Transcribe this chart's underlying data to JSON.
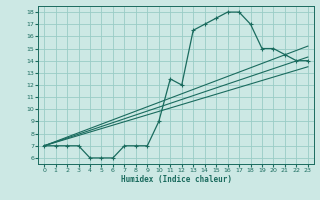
{
  "xlabel": "Humidex (Indice chaleur)",
  "background_color": "#cce8e4",
  "grid_color": "#99ccc6",
  "line_color": "#1a6b5e",
  "xlim": [
    -0.5,
    23.5
  ],
  "ylim": [
    5.5,
    18.5
  ],
  "xticks": [
    0,
    1,
    2,
    3,
    4,
    5,
    6,
    7,
    8,
    9,
    10,
    11,
    12,
    13,
    14,
    15,
    16,
    17,
    18,
    19,
    20,
    21,
    22,
    23
  ],
  "yticks": [
    6,
    7,
    8,
    9,
    10,
    11,
    12,
    13,
    14,
    15,
    16,
    17,
    18
  ],
  "curve_x": [
    0,
    1,
    2,
    3,
    4,
    5,
    6,
    7,
    8,
    9,
    10,
    11,
    12,
    13,
    14,
    15,
    16,
    17,
    18,
    19,
    20,
    21,
    22,
    23
  ],
  "curve_y": [
    7,
    7,
    7,
    7,
    6,
    6,
    6,
    7,
    7,
    7,
    9,
    12.5,
    12,
    16.5,
    17,
    17.5,
    18,
    18,
    17,
    15,
    15,
    14.5,
    14,
    14
  ],
  "line1_x": [
    0,
    23
  ],
  "line1_y": [
    7,
    15.2
  ],
  "line2_x": [
    0,
    23
  ],
  "line2_y": [
    7,
    13.5
  ],
  "line3_x": [
    0,
    23
  ],
  "line3_y": [
    7,
    14.3
  ]
}
